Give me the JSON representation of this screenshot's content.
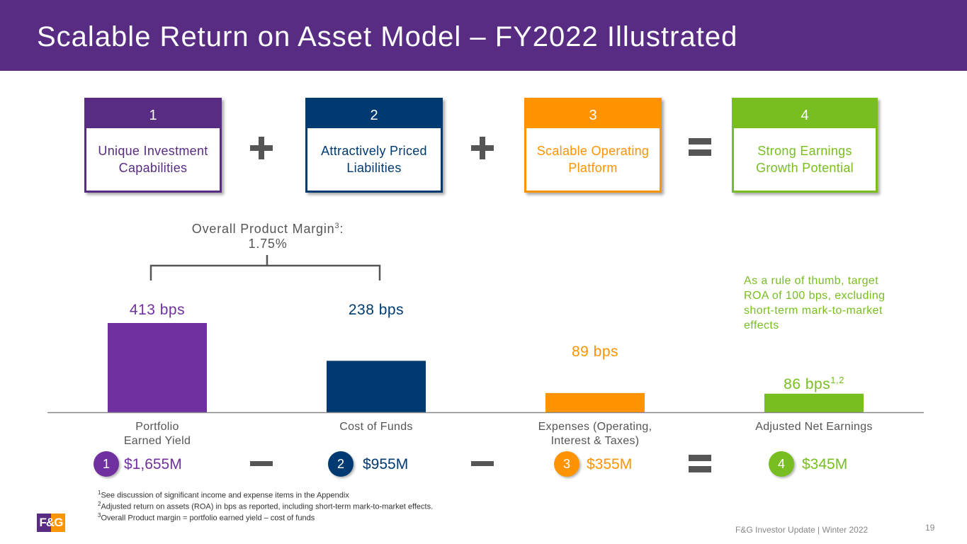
{
  "header": {
    "title": "Scalable Return on Asset Model – FY2022 Illustrated"
  },
  "steps": [
    {
      "num": "1",
      "label": "Unique Investment Capabilities",
      "color": "#582c83"
    },
    {
      "num": "2",
      "label": "Attractively Priced Liabilities",
      "color": "#003a70"
    },
    {
      "num": "3",
      "label": "Scalable Operating Platform",
      "color": "#ff9300"
    },
    {
      "num": "4",
      "label": "Strong Earnings Growth Potential",
      "color": "#78be20"
    }
  ],
  "operators": [
    "plus",
    "plus",
    "equals"
  ],
  "margin_note": {
    "line1": "Overall Product Margin",
    "sup": "3",
    "suffix": ":",
    "line2": "1.75%"
  },
  "rule_of_thumb": "As a rule of thumb, target ROA of 100 bps, excluding short-term mark-to-market effects",
  "chart_data": {
    "type": "bar",
    "categories": [
      "Portfolio Earned Yield",
      "Cost of Funds",
      "Expenses (Operating, Interest & Taxes)",
      "Adjusted Net Earnings"
    ],
    "values": [
      413,
      238,
      89,
      86
    ],
    "units": "bps",
    "data_labels": [
      "413 bps",
      "238 bps",
      "89 bps",
      "86 bps"
    ],
    "data_label_sup": [
      "",
      "",
      "",
      "1,2"
    ],
    "colors": [
      "#7030a0",
      "#003a70",
      "#ff9300",
      "#78be20"
    ],
    "grid": false
  },
  "cat_lines": [
    [
      "Portfolio",
      "Earned Yield"
    ],
    [
      "Cost of Funds"
    ],
    [
      "Expenses (Operating,",
      "Interest & Taxes)"
    ],
    [
      "Adjusted Net Earnings"
    ]
  ],
  "dollars": [
    {
      "num": "1",
      "amount": "$1,655M"
    },
    {
      "num": "2",
      "amount": "$955M"
    },
    {
      "num": "3",
      "amount": "$355M"
    },
    {
      "num": "4",
      "amount": "$345M"
    }
  ],
  "dollar_operators": [
    "minus",
    "minus",
    "equals"
  ],
  "footnotes": [
    {
      "sup": "1",
      "text": "See discussion of significant income and expense items in the Appendix"
    },
    {
      "sup": "2",
      "text": "Adjusted return on assets (ROA) in bps as reported, including short-term mark-to-market effects."
    },
    {
      "sup": "3",
      "text": "Overall Product margin = portfolio earned yield – cost of funds"
    }
  ],
  "footer": {
    "text": "F&G Investor Update | Winter 2022",
    "page": "19",
    "logo": "F&G"
  }
}
